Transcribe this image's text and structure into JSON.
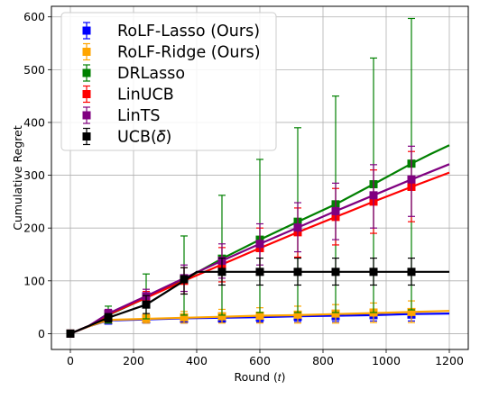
{
  "chart_data": {
    "type": "line",
    "title": "",
    "xlabel": "Round (𝑡)",
    "ylabel": "Cumulative Regret",
    "xlim": [
      -60,
      1260
    ],
    "ylim": [
      -30,
      620
    ],
    "xticks": [
      0,
      200,
      400,
      600,
      800,
      1000,
      1200
    ],
    "yticks": [
      0,
      100,
      200,
      300,
      400,
      500,
      600
    ],
    "grid": true,
    "legend_position": "top-left",
    "series": [
      {
        "name": "RoLF-Lasso (Ours)",
        "color": "#0000ff",
        "line": [
          [
            0,
            0
          ],
          [
            60,
            14
          ],
          [
            120,
            25
          ],
          [
            240,
            27
          ],
          [
            360,
            29
          ],
          [
            480,
            30
          ],
          [
            600,
            31
          ],
          [
            720,
            33
          ],
          [
            840,
            34
          ],
          [
            960,
            35
          ],
          [
            1080,
            37
          ],
          [
            1200,
            38
          ]
        ],
        "points": [
          {
            "x": 0,
            "y": 0,
            "lo": 0,
            "hi": 0
          },
          {
            "x": 120,
            "y": 25,
            "lo": 18,
            "hi": 32
          },
          {
            "x": 240,
            "y": 27,
            "lo": 20,
            "hi": 34
          },
          {
            "x": 360,
            "y": 28,
            "lo": 20,
            "hi": 36
          },
          {
            "x": 480,
            "y": 29,
            "lo": 21,
            "hi": 37
          },
          {
            "x": 600,
            "y": 31,
            "lo": 22,
            "hi": 40
          },
          {
            "x": 720,
            "y": 32,
            "lo": 23,
            "hi": 42
          },
          {
            "x": 840,
            "y": 33,
            "lo": 23,
            "hi": 43
          },
          {
            "x": 960,
            "y": 35,
            "lo": 24,
            "hi": 45
          },
          {
            "x": 1080,
            "y": 36,
            "lo": 24,
            "hi": 47
          }
        ]
      },
      {
        "name": "RoLF-Ridge (Ours)",
        "color": "#ffa500",
        "line": [
          [
            0,
            0
          ],
          [
            60,
            14
          ],
          [
            120,
            26
          ],
          [
            240,
            28
          ],
          [
            360,
            30
          ],
          [
            480,
            32
          ],
          [
            600,
            34
          ],
          [
            720,
            35
          ],
          [
            840,
            37
          ],
          [
            960,
            39
          ],
          [
            1080,
            41
          ],
          [
            1200,
            43
          ]
        ],
        "points": [
          {
            "x": 0,
            "y": 0,
            "lo": 0,
            "hi": 0
          },
          {
            "x": 120,
            "y": 27,
            "lo": 20,
            "hi": 34
          },
          {
            "x": 240,
            "y": 29,
            "lo": 20,
            "hi": 38
          },
          {
            "x": 360,
            "y": 31,
            "lo": 20,
            "hi": 42
          },
          {
            "x": 480,
            "y": 33,
            "lo": 20,
            "hi": 46
          },
          {
            "x": 600,
            "y": 34,
            "lo": 20,
            "hi": 49
          },
          {
            "x": 720,
            "y": 36,
            "lo": 20,
            "hi": 52
          },
          {
            "x": 840,
            "y": 38,
            "lo": 20,
            "hi": 55
          },
          {
            "x": 960,
            "y": 40,
            "lo": 21,
            "hi": 58
          },
          {
            "x": 1080,
            "y": 41,
            "lo": 21,
            "hi": 62
          }
        ]
      },
      {
        "name": "DRLasso",
        "color": "#008000",
        "line": [
          [
            0,
            0
          ],
          [
            60,
            15
          ],
          [
            120,
            35
          ],
          [
            240,
            68
          ],
          [
            360,
            102
          ],
          [
            480,
            142
          ],
          [
            600,
            178
          ],
          [
            720,
            212
          ],
          [
            840,
            245
          ],
          [
            960,
            283
          ],
          [
            1080,
            322
          ],
          [
            1140,
            340
          ],
          [
            1200,
            357
          ]
        ],
        "points": [
          {
            "x": 0,
            "y": 0,
            "lo": 0,
            "hi": 0
          },
          {
            "x": 120,
            "y": 35,
            "lo": 20,
            "hi": 52
          },
          {
            "x": 240,
            "y": 68,
            "lo": 28,
            "hi": 113
          },
          {
            "x": 360,
            "y": 102,
            "lo": 35,
            "hi": 185
          },
          {
            "x": 480,
            "y": 142,
            "lo": 35,
            "hi": 262
          },
          {
            "x": 600,
            "y": 178,
            "lo": 40,
            "hi": 330
          },
          {
            "x": 720,
            "y": 212,
            "lo": 40,
            "hi": 390
          },
          {
            "x": 840,
            "y": 245,
            "lo": 40,
            "hi": 450
          },
          {
            "x": 960,
            "y": 283,
            "lo": 40,
            "hi": 522
          },
          {
            "x": 1080,
            "y": 322,
            "lo": 45,
            "hi": 597
          }
        ]
      },
      {
        "name": "LinUCB",
        "color": "#ff0000",
        "line": [
          [
            0,
            0
          ],
          [
            60,
            15
          ],
          [
            120,
            36
          ],
          [
            240,
            68
          ],
          [
            360,
            100
          ],
          [
            480,
            131
          ],
          [
            600,
            162
          ],
          [
            720,
            192
          ],
          [
            840,
            221
          ],
          [
            960,
            250
          ],
          [
            1080,
            278
          ],
          [
            1200,
            305
          ]
        ],
        "points": [
          {
            "x": 0,
            "y": 0,
            "lo": 0,
            "hi": 0
          },
          {
            "x": 120,
            "y": 36,
            "lo": 28,
            "hi": 45
          },
          {
            "x": 240,
            "y": 68,
            "lo": 55,
            "hi": 80
          },
          {
            "x": 360,
            "y": 100,
            "lo": 75,
            "hi": 125
          },
          {
            "x": 480,
            "y": 131,
            "lo": 98,
            "hi": 163
          },
          {
            "x": 600,
            "y": 162,
            "lo": 122,
            "hi": 200
          },
          {
            "x": 720,
            "y": 192,
            "lo": 145,
            "hi": 238
          },
          {
            "x": 840,
            "y": 221,
            "lo": 168,
            "hi": 275
          },
          {
            "x": 960,
            "y": 250,
            "lo": 190,
            "hi": 310
          },
          {
            "x": 1080,
            "y": 278,
            "lo": 212,
            "hi": 345
          }
        ]
      },
      {
        "name": "LinTS",
        "color": "#800080",
        "line": [
          [
            0,
            0
          ],
          [
            60,
            15
          ],
          [
            120,
            38
          ],
          [
            240,
            71
          ],
          [
            360,
            105
          ],
          [
            480,
            138
          ],
          [
            600,
            170
          ],
          [
            720,
            201
          ],
          [
            840,
            232
          ],
          [
            960,
            262
          ],
          [
            1080,
            292
          ],
          [
            1200,
            321
          ]
        ],
        "points": [
          {
            "x": 0,
            "y": 0,
            "lo": 0,
            "hi": 0
          },
          {
            "x": 120,
            "y": 38,
            "lo": 30,
            "hi": 46
          },
          {
            "x": 240,
            "y": 71,
            "lo": 58,
            "hi": 84
          },
          {
            "x": 360,
            "y": 105,
            "lo": 80,
            "hi": 130
          },
          {
            "x": 480,
            "y": 138,
            "lo": 105,
            "hi": 170
          },
          {
            "x": 600,
            "y": 170,
            "lo": 130,
            "hi": 208
          },
          {
            "x": 720,
            "y": 201,
            "lo": 155,
            "hi": 248
          },
          {
            "x": 840,
            "y": 232,
            "lo": 178,
            "hi": 285
          },
          {
            "x": 960,
            "y": 262,
            "lo": 200,
            "hi": 320
          },
          {
            "x": 1080,
            "y": 292,
            "lo": 222,
            "hi": 355
          }
        ]
      },
      {
        "name": "UCB(𝛿)",
        "color": "#000000",
        "line": [
          [
            0,
            0
          ],
          [
            60,
            15
          ],
          [
            120,
            30
          ],
          [
            240,
            55
          ],
          [
            360,
            100
          ],
          [
            400,
            117
          ],
          [
            480,
            117
          ],
          [
            600,
            117
          ],
          [
            720,
            117
          ],
          [
            840,
            117
          ],
          [
            960,
            117
          ],
          [
            1080,
            117
          ],
          [
            1200,
            117
          ]
        ],
        "points": [
          {
            "x": 0,
            "y": 0,
            "lo": 0,
            "hi": 0
          },
          {
            "x": 120,
            "y": 30,
            "lo": 22,
            "hi": 38
          },
          {
            "x": 240,
            "y": 55,
            "lo": 38,
            "hi": 72
          },
          {
            "x": 360,
            "y": 103,
            "lo": 75,
            "hi": 125
          },
          {
            "x": 480,
            "y": 117,
            "lo": 92,
            "hi": 143
          },
          {
            "x": 600,
            "y": 117,
            "lo": 92,
            "hi": 143
          },
          {
            "x": 720,
            "y": 117,
            "lo": 92,
            "hi": 143
          },
          {
            "x": 840,
            "y": 117,
            "lo": 92,
            "hi": 143
          },
          {
            "x": 960,
            "y": 117,
            "lo": 92,
            "hi": 143
          },
          {
            "x": 1080,
            "y": 117,
            "lo": 92,
            "hi": 143
          }
        ]
      }
    ]
  }
}
